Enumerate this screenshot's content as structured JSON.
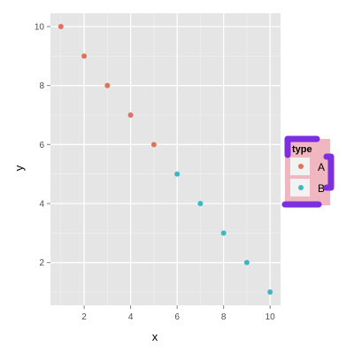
{
  "chart_data": {
    "type": "scatter",
    "xlabel": "x",
    "ylabel": "y",
    "xlim": [
      0.55,
      10.45
    ],
    "ylim": [
      0.55,
      10.45
    ],
    "x_ticks": [
      2,
      4,
      6,
      8,
      10
    ],
    "y_ticks": [
      2,
      4,
      6,
      8,
      10
    ],
    "grid": true,
    "legend_position": "right",
    "legend": {
      "title": "type",
      "entries": [
        "A",
        "B"
      ]
    },
    "series": [
      {
        "name": "A",
        "color": "#E2705F",
        "x": [
          1,
          2,
          3,
          4,
          5
        ],
        "y": [
          10,
          9,
          8,
          7,
          6
        ]
      },
      {
        "name": "B",
        "color": "#3FB7C0",
        "x": [
          6,
          7,
          8,
          9,
          10
        ],
        "y": [
          5,
          4,
          3,
          2,
          1
        ]
      }
    ],
    "colors": {
      "panel_background": "#E5E5E5",
      "grid_major": "#FFFFFF",
      "grid_minor": "#F2F2F2",
      "legend_background": "#F1B7C0",
      "legend_brackets": "#7B2FE0"
    }
  }
}
